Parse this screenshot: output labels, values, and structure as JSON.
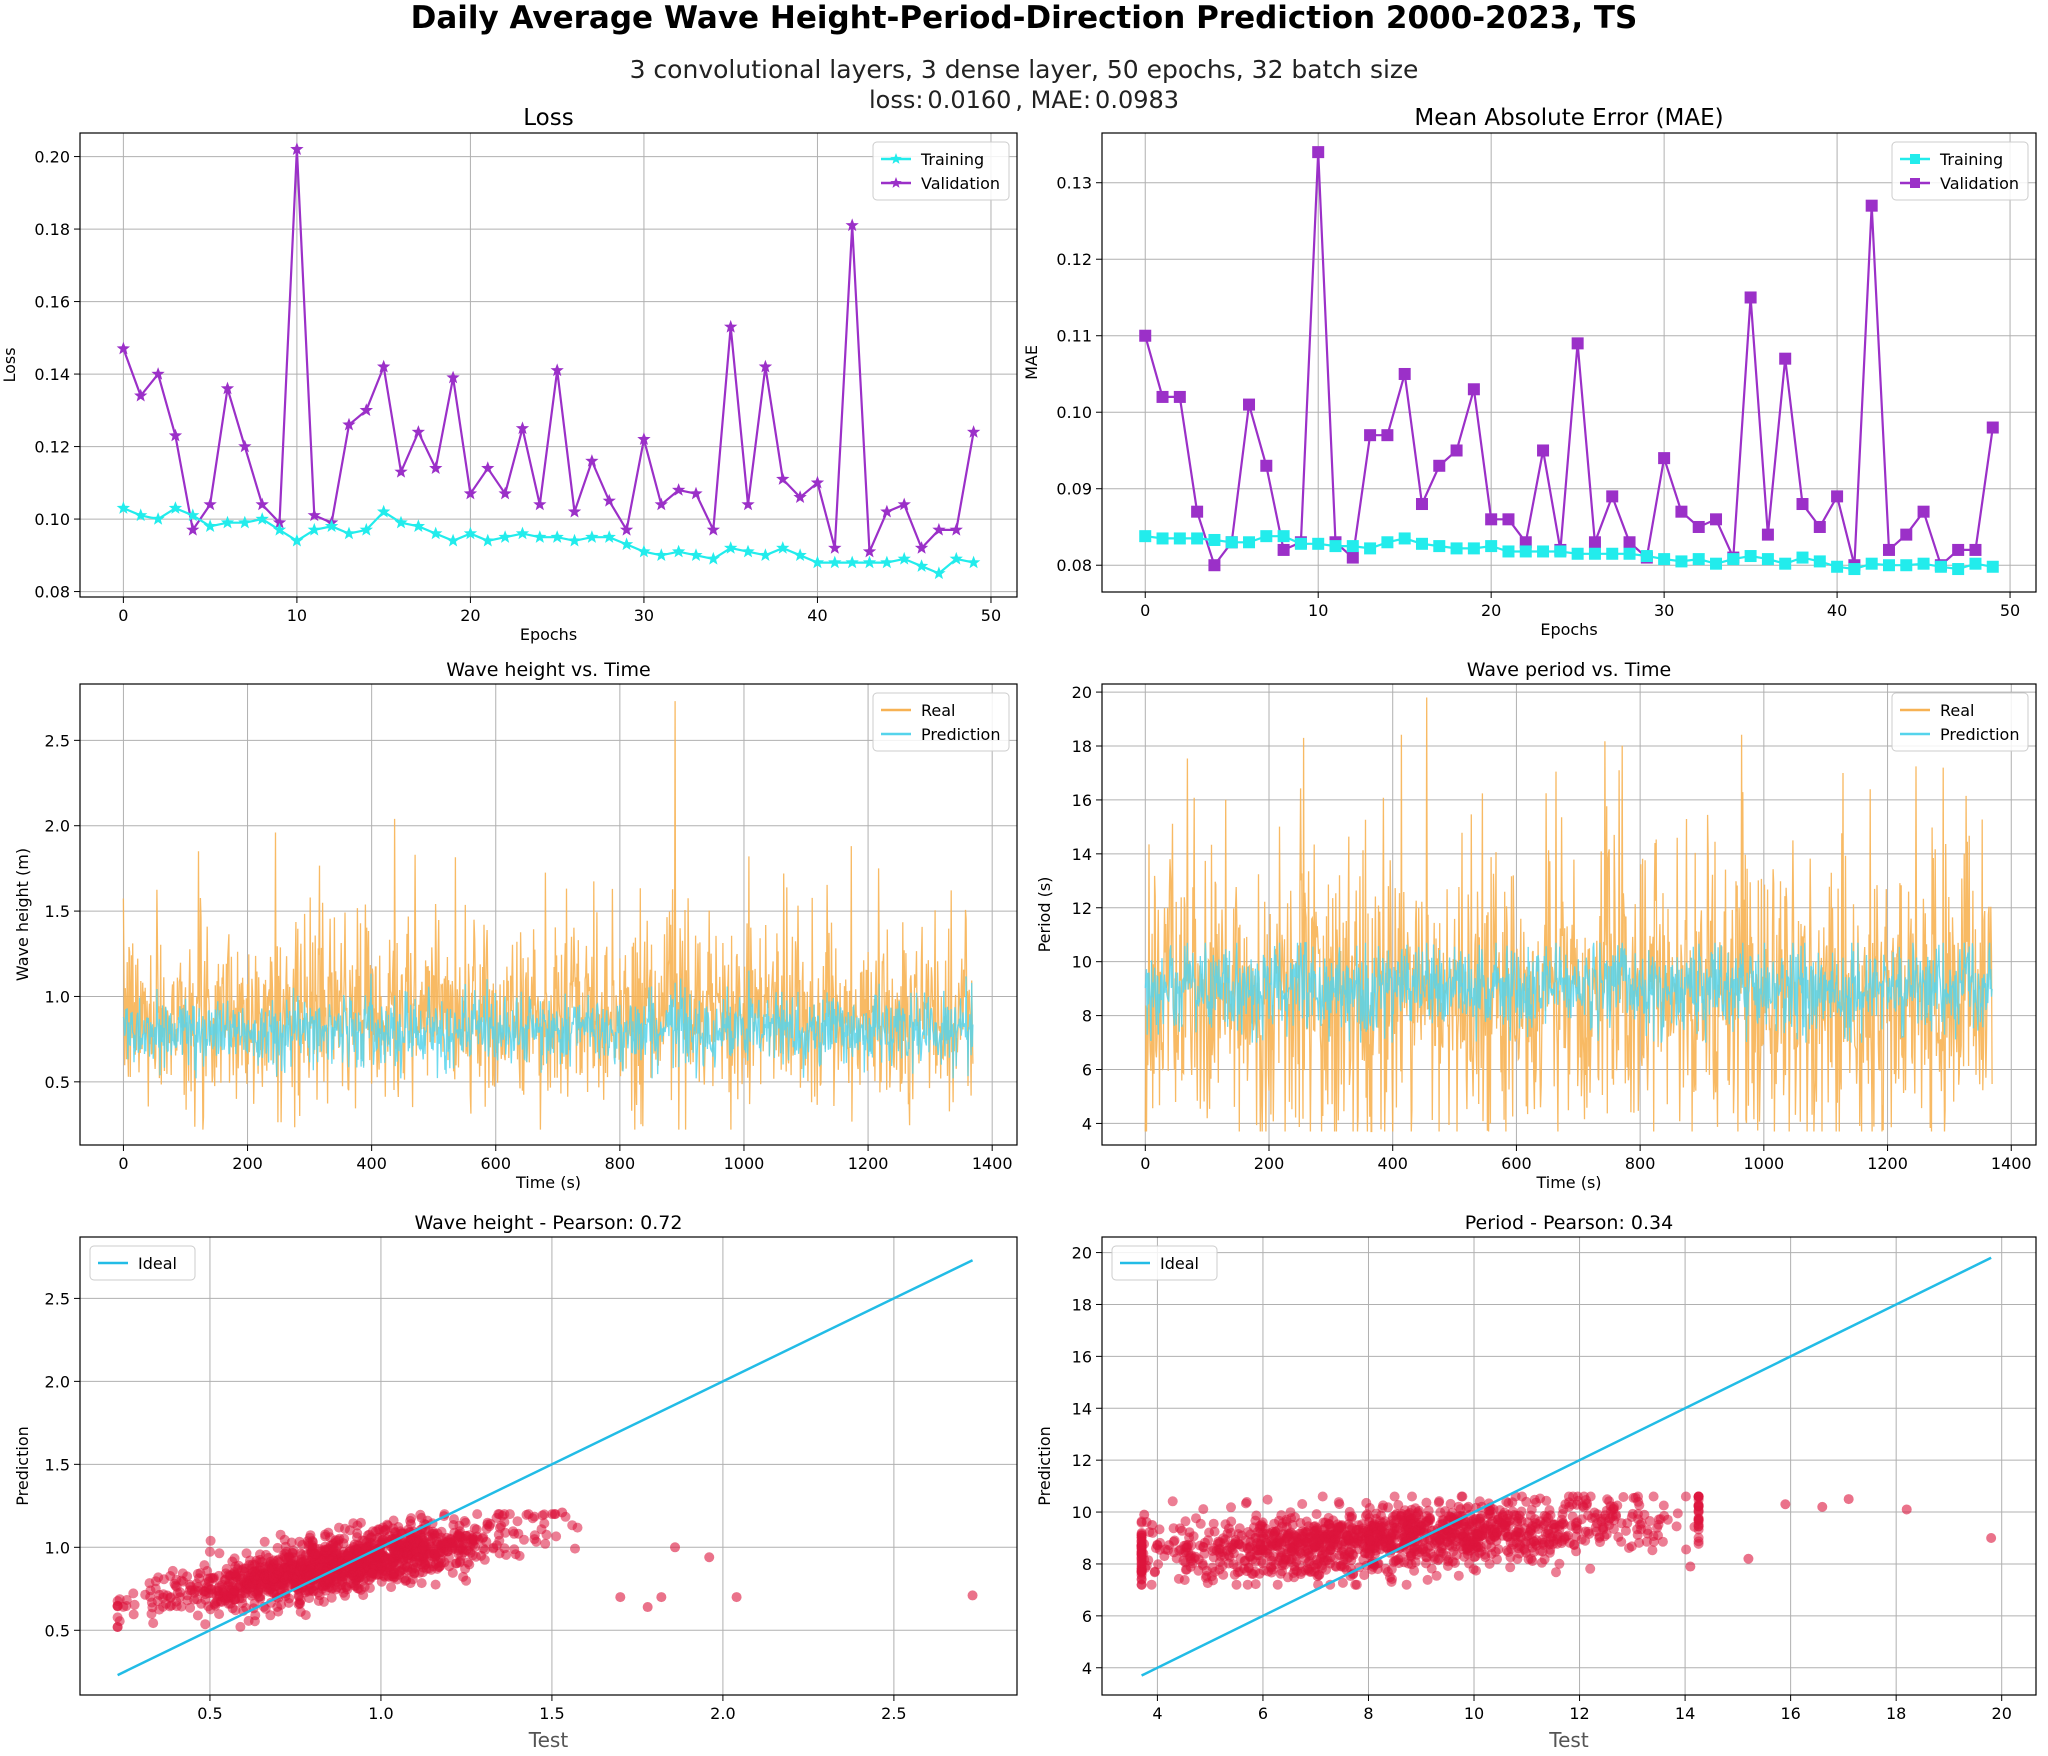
{
  "figure": {
    "title": "Daily Average Wave Height-Period-Direction Prediction 2000-2023, TS",
    "subtitle": "3 convolutional layers, 3 dense layer, 50 epochs, 32 batch size",
    "metrics_loss_label": "loss:",
    "metrics_loss_value": "0.0160",
    "metrics_sep": ", MAE:",
    "metrics_mae_value": "0.0983"
  },
  "colors": {
    "training": "#22ecec",
    "validation": "#9b30c8",
    "real": "#f7b253",
    "prediction": "#55d4ec",
    "scatter": "#dc143c",
    "ideal": "#22bce6",
    "grid": "#b0b0b0"
  },
  "chart_data": [
    {
      "id": "loss",
      "type": "line",
      "title": "Loss",
      "xlabel": "Epochs",
      "ylabel": "Loss",
      "xlim": [
        -2.5,
        51.5
      ],
      "ylim": [
        0.0785,
        0.2065
      ],
      "xticks": [
        0,
        10,
        20,
        30,
        40,
        50
      ],
      "yticks": [
        0.08,
        0.1,
        0.12,
        0.14,
        0.16,
        0.18,
        0.2
      ],
      "ytick_labels": [
        "0.08",
        "0.10",
        "0.12",
        "0.14",
        "0.16",
        "0.18",
        "0.20"
      ],
      "marker": "star",
      "legend_position": "upper right",
      "x": [
        0,
        1,
        2,
        3,
        4,
        5,
        6,
        7,
        8,
        9,
        10,
        11,
        12,
        13,
        14,
        15,
        16,
        17,
        18,
        19,
        20,
        21,
        22,
        23,
        24,
        25,
        26,
        27,
        28,
        29,
        30,
        31,
        32,
        33,
        34,
        35,
        36,
        37,
        38,
        39,
        40,
        41,
        42,
        43,
        44,
        45,
        46,
        47,
        48,
        49
      ],
      "series": [
        {
          "name": "Training",
          "color_key": "training",
          "values": [
            0.103,
            0.101,
            0.1,
            0.103,
            0.101,
            0.098,
            0.099,
            0.099,
            0.1,
            0.097,
            0.094,
            0.097,
            0.098,
            0.096,
            0.097,
            0.102,
            0.099,
            0.098,
            0.096,
            0.094,
            0.096,
            0.094,
            0.095,
            0.096,
            0.095,
            0.095,
            0.094,
            0.095,
            0.095,
            0.093,
            0.091,
            0.09,
            0.091,
            0.09,
            0.089,
            0.092,
            0.091,
            0.09,
            0.092,
            0.09,
            0.088,
            0.088,
            0.088,
            0.088,
            0.088,
            0.089,
            0.087,
            0.085,
            0.089,
            0.088
          ]
        },
        {
          "name": "Validation",
          "color_key": "validation",
          "values": [
            0.147,
            0.134,
            0.14,
            0.123,
            0.097,
            0.104,
            0.136,
            0.12,
            0.104,
            0.099,
            0.202,
            0.101,
            0.099,
            0.126,
            0.13,
            0.142,
            0.113,
            0.124,
            0.114,
            0.139,
            0.107,
            0.114,
            0.107,
            0.125,
            0.104,
            0.141,
            0.102,
            0.116,
            0.105,
            0.097,
            0.122,
            0.104,
            0.108,
            0.107,
            0.097,
            0.153,
            0.104,
            0.142,
            0.111,
            0.106,
            0.11,
            0.092,
            0.181,
            0.091,
            0.102,
            0.104,
            0.092,
            0.097,
            0.097,
            0.124
          ]
        }
      ]
    },
    {
      "id": "mae",
      "type": "line",
      "title": "Mean Absolute Error (MAE)",
      "xlabel": "Epochs",
      "ylabel": "MAE",
      "xlim": [
        -2.5,
        51.5
      ],
      "ylim": [
        0.0765,
        0.1365
      ],
      "xticks": [
        0,
        10,
        20,
        30,
        40,
        50
      ],
      "yticks": [
        0.08,
        0.09,
        0.1,
        0.11,
        0.12,
        0.13
      ],
      "ytick_labels": [
        "0.08",
        "0.09",
        "0.10",
        "0.11",
        "0.12",
        "0.13"
      ],
      "marker": "square",
      "legend_position": "upper right",
      "x": [
        0,
        1,
        2,
        3,
        4,
        5,
        6,
        7,
        8,
        9,
        10,
        11,
        12,
        13,
        14,
        15,
        16,
        17,
        18,
        19,
        20,
        21,
        22,
        23,
        24,
        25,
        26,
        27,
        28,
        29,
        30,
        31,
        32,
        33,
        34,
        35,
        36,
        37,
        38,
        39,
        40,
        41,
        42,
        43,
        44,
        45,
        46,
        47,
        48,
        49
      ],
      "series": [
        {
          "name": "Training",
          "color_key": "training",
          "values": [
            0.0838,
            0.0835,
            0.0835,
            0.0835,
            0.0833,
            0.083,
            0.083,
            0.0838,
            0.0838,
            0.0828,
            0.0828,
            0.0825,
            0.0825,
            0.0822,
            0.083,
            0.0835,
            0.0828,
            0.0825,
            0.0822,
            0.0822,
            0.0825,
            0.0818,
            0.0818,
            0.0818,
            0.0818,
            0.0815,
            0.0815,
            0.0815,
            0.0815,
            0.0812,
            0.0808,
            0.0805,
            0.0808,
            0.0802,
            0.0808,
            0.0812,
            0.0808,
            0.0802,
            0.081,
            0.0805,
            0.0798,
            0.0795,
            0.0802,
            0.08,
            0.08,
            0.0802,
            0.0798,
            0.0795,
            0.0802,
            0.0798
          ]
        },
        {
          "name": "Validation",
          "color_key": "validation",
          "values": [
            0.11,
            0.102,
            0.102,
            0.087,
            0.08,
            0.083,
            0.101,
            0.093,
            0.082,
            0.083,
            0.134,
            0.083,
            0.081,
            0.097,
            0.097,
            0.105,
            0.088,
            0.093,
            0.095,
            0.103,
            0.086,
            0.086,
            0.083,
            0.095,
            0.082,
            0.109,
            0.083,
            0.089,
            0.083,
            0.081,
            0.094,
            0.087,
            0.085,
            0.086,
            0.081,
            0.115,
            0.084,
            0.107,
            0.088,
            0.085,
            0.089,
            0.08,
            0.127,
            0.082,
            0.084,
            0.087,
            0.08,
            0.082,
            0.082,
            0.098
          ]
        }
      ]
    },
    {
      "id": "height_time",
      "type": "line",
      "title": "Wave height vs. Time",
      "xlabel": "Time (s)",
      "ylabel": "Wave height (m)",
      "xlim": [
        -70,
        1440
      ],
      "ylim": [
        0.13,
        2.83
      ],
      "xticks": [
        0,
        200,
        400,
        600,
        800,
        1000,
        1200,
        1400
      ],
      "yticks": [
        0.5,
        1.0,
        1.5,
        2.0,
        2.5
      ],
      "ytick_labels": [
        "0.5",
        "1.0",
        "1.5",
        "2.0",
        "2.5"
      ],
      "legend_position": "upper right",
      "n_points": 1370,
      "series": [
        {
          "name": "Real",
          "color_key": "real",
          "mean": 0.88,
          "std": 0.25,
          "min": 0.22,
          "max": 2.73,
          "peaks": [
            [
              889,
              2.73
            ],
            [
              437,
              2.04
            ],
            [
              245,
              1.96
            ],
            [
              121,
              1.85
            ],
            [
              470,
              1.83
            ],
            [
              1008,
              1.82
            ],
            [
              1064,
              1.72
            ],
            [
              1217,
              1.75
            ]
          ]
        },
        {
          "name": "Prediction",
          "color_key": "prediction",
          "mean": 0.8,
          "std": 0.1,
          "min": 0.52,
          "max": 1.2
        }
      ]
    },
    {
      "id": "period_time",
      "type": "line",
      "title": "Wave period vs. Time",
      "xlabel": "Time (s)",
      "ylabel": "Period (s)",
      "xlim": [
        -70,
        1440
      ],
      "ylim": [
        3.2,
        20.3
      ],
      "xticks": [
        0,
        200,
        400,
        600,
        800,
        1000,
        1200,
        1400
      ],
      "yticks": [
        4,
        6,
        8,
        10,
        12,
        14,
        16,
        18,
        20
      ],
      "ytick_labels": [
        "4",
        "6",
        "8",
        "10",
        "12",
        "14",
        "16",
        "18",
        "20"
      ],
      "legend_position": "upper right",
      "n_points": 1370,
      "series": [
        {
          "name": "Real",
          "color_key": "real",
          "mean": 8.6,
          "std": 2.6,
          "min": 3.7,
          "max": 19.8,
          "peaks": [
            [
              455,
              19.8
            ],
            [
              256,
              18.3
            ],
            [
              1290,
              17.2
            ],
            [
              1128,
              17.0
            ],
            [
              766,
              17.1
            ]
          ]
        },
        {
          "name": "Prediction",
          "color_key": "prediction",
          "mean": 9.0,
          "std": 0.75,
          "min": 7.0,
          "max": 10.7
        }
      ]
    },
    {
      "id": "height_scatter",
      "type": "scatter",
      "title": "Wave height - Pearson: 0.72",
      "xlabel": "Test",
      "ylabel": "Prediction",
      "xlim": [
        0.12,
        2.86
      ],
      "ylim": [
        0.11,
        2.87
      ],
      "xticks": [
        0.5,
        1.0,
        1.5,
        2.0,
        2.5
      ],
      "xtick_labels": [
        "0.5",
        "1.0",
        "1.5",
        "2.0",
        "2.5"
      ],
      "yticks": [
        0.5,
        1.0,
        1.5,
        2.0,
        2.5
      ],
      "ytick_labels": [
        "0.5",
        "1.0",
        "1.5",
        "2.0",
        "2.5"
      ],
      "legend_position": "upper left",
      "ideal": {
        "name": "Ideal",
        "from": 0.23,
        "to": 2.73
      },
      "points": {
        "count": 1370,
        "test_mean": 0.88,
        "test_std": 0.25,
        "pred_base": 0.56,
        "pred_slope": 0.38,
        "pred_noise": 0.085,
        "pred_min": 0.52,
        "pred_max": 1.2
      },
      "outliers": [
        [
          2.73,
          0.71
        ],
        [
          2.04,
          0.7
        ],
        [
          1.96,
          0.94
        ],
        [
          1.86,
          1.0
        ],
        [
          1.82,
          0.7
        ],
        [
          1.78,
          0.64
        ],
        [
          1.7,
          0.7
        ],
        [
          1.53,
          1.21
        ]
      ]
    },
    {
      "id": "period_scatter",
      "type": "scatter",
      "title": "Period - Pearson: 0.34",
      "xlabel": "Test",
      "ylabel": "Prediction",
      "xlim": [
        2.95,
        20.65
      ],
      "ylim": [
        2.95,
        20.6
      ],
      "xticks": [
        4,
        6,
        8,
        10,
        12,
        14,
        16,
        18,
        20
      ],
      "xtick_labels": [
        "4",
        "6",
        "8",
        "10",
        "12",
        "14",
        "16",
        "18",
        "20"
      ],
      "yticks": [
        4,
        6,
        8,
        10,
        12,
        14,
        16,
        18,
        20
      ],
      "ytick_labels": [
        "4",
        "6",
        "8",
        "10",
        "12",
        "14",
        "16",
        "18",
        "20"
      ],
      "legend_position": "upper left",
      "ideal": {
        "name": "Ideal",
        "from": 3.7,
        "to": 19.8
      },
      "points": {
        "count": 1370,
        "test_mean": 8.6,
        "test_std": 2.6,
        "pred_base": 7.8,
        "pred_slope": 0.14,
        "pred_noise": 0.65,
        "pred_min": 7.2,
        "pred_max": 10.6
      },
      "outliers": [
        [
          19.8,
          9.0
        ],
        [
          18.2,
          10.1
        ],
        [
          17.1,
          10.5
        ],
        [
          16.6,
          10.2
        ],
        [
          15.9,
          10.3
        ],
        [
          14.1,
          7.9
        ],
        [
          15.2,
          8.2
        ],
        [
          3.75,
          9.9
        ],
        [
          3.9,
          9.5
        ]
      ]
    }
  ]
}
